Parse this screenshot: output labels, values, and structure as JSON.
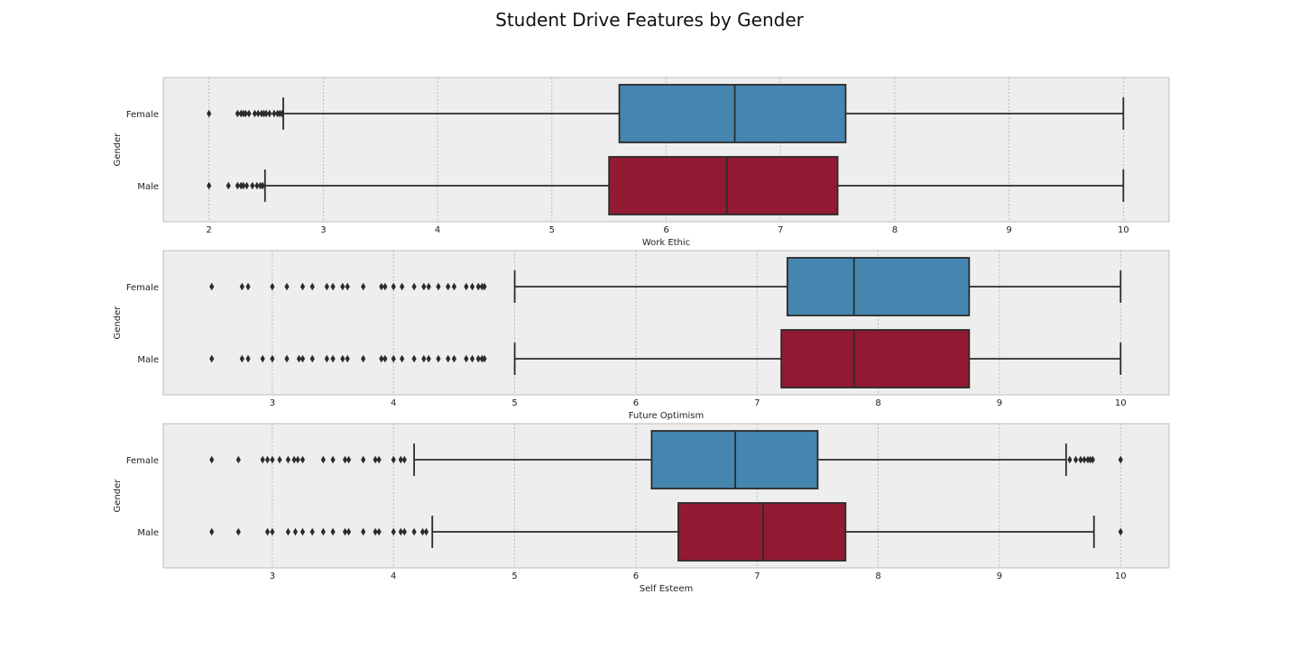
{
  "title": "Student Drive Features by Gender",
  "colors": {
    "background": "#ffffff",
    "panel": "#eeeeee",
    "panel_border": "#bcbcbc",
    "grid": "#b0b0b0",
    "line": "#2b2b2b",
    "Female": "#4586b0",
    "Male": "#921a32"
  },
  "chart_data": [
    {
      "type": "boxplot",
      "orientation": "horizontal",
      "xlabel": "Work Ethic",
      "ylabel": "Gender",
      "xlim": [
        1.6,
        10.4
      ],
      "xticks": [
        2,
        3,
        4,
        5,
        6,
        7,
        8,
        9,
        10
      ],
      "grid": true,
      "groups": [
        {
          "name": "Female",
          "whisker_low": 2.65,
          "q1": 5.59,
          "median": 6.6,
          "q3": 7.57,
          "whisker_high": 10,
          "outliers": [
            2.0,
            2.25,
            2.28,
            2.3,
            2.32,
            2.35,
            2.4,
            2.43,
            2.46,
            2.48,
            2.5,
            2.53,
            2.57,
            2.6,
            2.62,
            2.64
          ]
        },
        {
          "name": "Male",
          "whisker_low": 2.49,
          "q1": 5.5,
          "median": 6.53,
          "q3": 7.5,
          "whisker_high": 10,
          "outliers": [
            2.0,
            2.17,
            2.25,
            2.28,
            2.3,
            2.33,
            2.38,
            2.42,
            2.45,
            2.47
          ]
        }
      ]
    },
    {
      "type": "boxplot",
      "orientation": "horizontal",
      "xlabel": "Future Optimism",
      "ylabel": "Gender",
      "xlim": [
        2.1,
        10.4
      ],
      "xticks": [
        3,
        4,
        5,
        6,
        7,
        8,
        9,
        10
      ],
      "grid": true,
      "groups": [
        {
          "name": "Female",
          "whisker_low": 5.0,
          "q1": 7.25,
          "median": 7.8,
          "q3": 8.75,
          "whisker_high": 10,
          "outliers": [
            2.5,
            2.75,
            2.8,
            3.0,
            3.12,
            3.25,
            3.33,
            3.45,
            3.5,
            3.58,
            3.62,
            3.75,
            3.9,
            3.93,
            4.0,
            4.07,
            4.17,
            4.25,
            4.29,
            4.37,
            4.45,
            4.5,
            4.6,
            4.65,
            4.7,
            4.73,
            4.75
          ]
        },
        {
          "name": "Male",
          "whisker_low": 5.0,
          "q1": 7.2,
          "median": 7.8,
          "q3": 8.75,
          "whisker_high": 10,
          "outliers": [
            2.5,
            2.75,
            2.8,
            2.92,
            3.0,
            3.12,
            3.22,
            3.25,
            3.33,
            3.45,
            3.5,
            3.58,
            3.62,
            3.75,
            3.9,
            3.93,
            4.0,
            4.07,
            4.17,
            4.25,
            4.29,
            4.37,
            4.45,
            4.5,
            4.6,
            4.65,
            4.7,
            4.73,
            4.75
          ]
        }
      ]
    },
    {
      "type": "boxplot",
      "orientation": "horizontal",
      "xlabel": "Self Esteem",
      "ylabel": "Gender",
      "xlim": [
        2.1,
        10.4
      ],
      "xticks": [
        3,
        4,
        5,
        6,
        7,
        8,
        9,
        10
      ],
      "grid": true,
      "groups": [
        {
          "name": "Female",
          "whisker_low": 4.17,
          "q1": 6.13,
          "median": 6.82,
          "q3": 7.5,
          "whisker_high": 9.55,
          "outliers": [
            2.5,
            2.72,
            2.92,
            2.96,
            3.0,
            3.06,
            3.13,
            3.18,
            3.21,
            3.25,
            3.42,
            3.5,
            3.6,
            3.63,
            3.75,
            3.85,
            3.88,
            4.0,
            4.06,
            4.09,
            9.58,
            9.63,
            9.67,
            9.7,
            9.73,
            9.75,
            9.77,
            10.0
          ]
        },
        {
          "name": "Male",
          "whisker_low": 4.32,
          "q1": 6.35,
          "median": 7.05,
          "q3": 7.73,
          "whisker_high": 9.78,
          "outliers": [
            2.5,
            2.72,
            2.96,
            3.0,
            3.13,
            3.19,
            3.25,
            3.33,
            3.42,
            3.5,
            3.6,
            3.63,
            3.75,
            3.85,
            3.88,
            4.0,
            4.06,
            4.09,
            4.17,
            4.24,
            4.27,
            10.0
          ]
        }
      ]
    }
  ]
}
